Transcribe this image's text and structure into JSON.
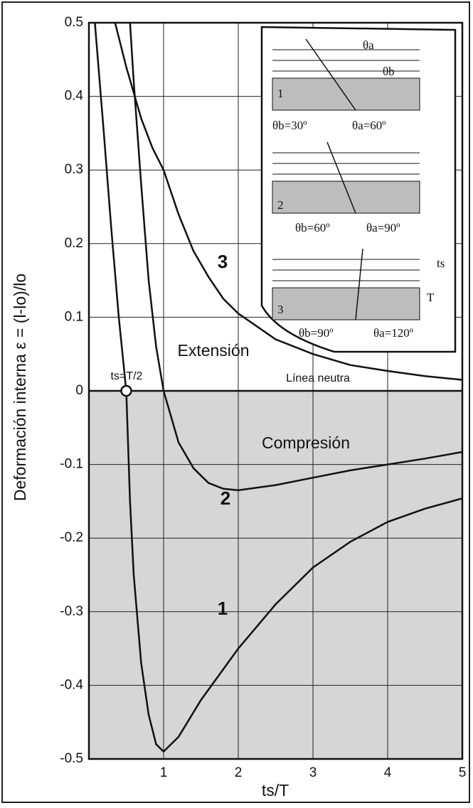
{
  "chart_data": {
    "type": "line",
    "x_label": "ts/T",
    "y_label": "Deformación interna ε = (l-lo)/lo",
    "xlim": [
      0,
      5
    ],
    "xticks": [
      1,
      2,
      3,
      4,
      5
    ],
    "ylim": [
      -0.5,
      0.5
    ],
    "yticks": [
      0.5,
      0.4,
      0.3,
      0.2,
      0.1,
      0,
      -0.1,
      -0.2,
      -0.3,
      -0.4,
      -0.5
    ],
    "grid": true,
    "series": [
      {
        "name": "1",
        "color": "#111111",
        "x": [
          0.08,
          0.2,
          0.3,
          0.4,
          0.5,
          0.55,
          0.6,
          0.7,
          0.8,
          0.9,
          1,
          1.2,
          1.5,
          2,
          2.5,
          3,
          3.5,
          4,
          4.5,
          5
        ],
        "values": [
          0.5,
          0.35,
          0.22,
          0.1,
          0,
          -0.15,
          -0.25,
          -0.37,
          -0.44,
          -0.48,
          -0.49,
          -0.47,
          -0.42,
          -0.35,
          -0.29,
          -0.24,
          -0.205,
          -0.178,
          -0.16,
          -0.146
        ]
      },
      {
        "name": "2",
        "color": "#111111",
        "x": [
          0.55,
          0.6,
          0.7,
          0.8,
          0.9,
          1,
          1.2,
          1.4,
          1.6,
          1.8,
          2,
          2.5,
          3,
          3.5,
          4,
          4.5,
          5
        ],
        "values": [
          0.5,
          0.42,
          0.28,
          0.15,
          0.06,
          0,
          -0.07,
          -0.105,
          -0.125,
          -0.133,
          -0.135,
          -0.128,
          -0.118,
          -0.108,
          -0.1,
          -0.092,
          -0.083
        ]
      },
      {
        "name": "3",
        "color": "#111111",
        "x": [
          0.35,
          0.5,
          0.7,
          0.85,
          1,
          1.2,
          1.4,
          1.6,
          1.8,
          2,
          2.5,
          3,
          3.5,
          4,
          4.5,
          5
        ],
        "values": [
          0.5,
          0.44,
          0.37,
          0.33,
          0.3,
          0.24,
          0.19,
          0.155,
          0.125,
          0.105,
          0.07,
          0.05,
          0.035,
          0.027,
          0.02,
          0.015
        ]
      }
    ],
    "marker": {
      "label": "ts=T/2",
      "x": 0.5,
      "y": 0
    },
    "annotations": {
      "extension": "Extensión",
      "compression": "Compresión",
      "neutral": "Línea neutra"
    },
    "inset": {
      "theta_a": "θa",
      "theta_b": "θb",
      "case1": {
        "number": "1",
        "angle_b": "θb=30º",
        "angle_a": "θa=60º"
      },
      "case2": {
        "number": "2",
        "angle_b": "θb=60º",
        "angle_a": "θa=90º"
      },
      "case3": {
        "number": "3",
        "angle_b": "θb=90º",
        "angle_a": "θa=120º"
      },
      "ts": "ts",
      "T": "T"
    }
  }
}
